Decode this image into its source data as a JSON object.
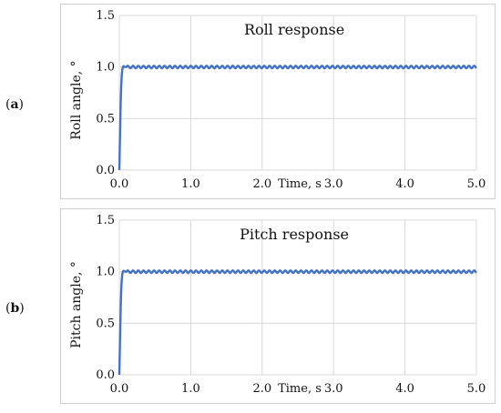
{
  "chart_data": [
    {
      "type": "line",
      "panel_label": "a",
      "title": "Roll response",
      "xlabel": "Time, s",
      "ylabel": "Roll angle, °",
      "xlim": [
        0,
        5
      ],
      "ylim": [
        0,
        1.5
      ],
      "xticks": [
        "0.0",
        "1.0",
        "2.0",
        "3.0",
        "4.0",
        "5.0"
      ],
      "yticks": [
        "0.0",
        "0.5",
        "1.0",
        "1.5"
      ],
      "grid": true,
      "series": [
        {
          "color": "#4472c4",
          "x": [
            0,
            0.01,
            0.02,
            0.03,
            0.04,
            0.05,
            0.06,
            0.08,
            0.1,
            0.5,
            1.0,
            1.5,
            2.0,
            2.5,
            3.0,
            3.5,
            4.0,
            4.5,
            5.0
          ],
          "y": [
            0,
            0.35,
            0.68,
            0.88,
            0.97,
            1.0,
            1.01,
            1.0,
            1.0,
            1.0,
            1.0,
            1.0,
            1.0,
            1.0,
            1.0,
            1.0,
            1.0,
            1.0,
            1.0
          ],
          "ripple_amplitude": 0.012
        }
      ]
    },
    {
      "type": "line",
      "panel_label": "b",
      "title": "Pitch response",
      "xlabel": "Time, s",
      "ylabel": "Pitch angle, °",
      "xlim": [
        0,
        5
      ],
      "ylim": [
        0,
        1.5
      ],
      "xticks": [
        "0.0",
        "1.0",
        "2.0",
        "3.0",
        "4.0",
        "5.0"
      ],
      "yticks": [
        "0.0",
        "0.5",
        "1.0",
        "1.5"
      ],
      "grid": true,
      "series": [
        {
          "color": "#4472c4",
          "x": [
            0,
            0.01,
            0.02,
            0.03,
            0.04,
            0.05,
            0.06,
            0.08,
            0.1,
            0.5,
            1.0,
            1.5,
            2.0,
            2.5,
            3.0,
            3.5,
            4.0,
            4.5,
            5.0
          ],
          "y": [
            0,
            0.35,
            0.68,
            0.88,
            0.97,
            1.0,
            1.01,
            1.0,
            1.0,
            1.0,
            1.0,
            1.0,
            1.0,
            1.0,
            1.0,
            1.0,
            1.0,
            1.0,
            1.0
          ],
          "ripple_amplitude": 0.012
        }
      ]
    }
  ]
}
